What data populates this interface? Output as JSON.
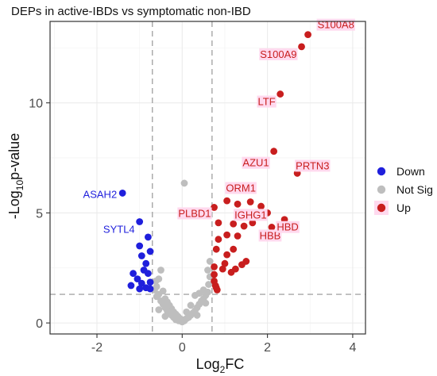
{
  "chart_data": {
    "type": "scatter",
    "title": "DEPs in active-IBDs vs symptomatic non-IBD",
    "xlabel": {
      "main": "Log",
      "sub": "2",
      "tail": "FC"
    },
    "ylabel": {
      "main": "-Log",
      "sub": "10",
      "tail": "p-value"
    },
    "xlim": [
      -3.1,
      4.3
    ],
    "ylim": [
      -0.5,
      13.7
    ],
    "x_ticks": [
      -2,
      0,
      2,
      4
    ],
    "y_ticks": [
      0,
      5,
      10
    ],
    "thresholds": {
      "log2fc": [
        -0.7,
        0.7
      ],
      "neglog10p": 1.3
    },
    "grid": true,
    "legend_position": "right",
    "colors": {
      "Down": "#1f1fdc",
      "Not Sig": "#bebebe",
      "Up": "#c81e1e",
      "label_bg": "#ffd9ee",
      "threshold_line": "#a6a6a6",
      "panel_border": "#333333",
      "grid": "#ebebeb"
    },
    "legend": [
      {
        "name": "Down",
        "color": "#1f1fdc"
      },
      {
        "name": "Not Sig",
        "color": "#bebebe"
      },
      {
        "name": "Up",
        "color": "#c81e1e"
      }
    ],
    "series": [
      {
        "name": "Down",
        "points": [
          [
            -1.4,
            5.9
          ],
          [
            -1.0,
            4.6
          ],
          [
            -0.8,
            3.9
          ],
          [
            -1.0,
            3.5
          ],
          [
            -0.95,
            3.05
          ],
          [
            -0.75,
            3.25
          ],
          [
            -0.85,
            2.7
          ],
          [
            -0.9,
            2.4
          ],
          [
            -1.15,
            2.25
          ],
          [
            -0.8,
            2.25
          ],
          [
            -1.05,
            2.0
          ],
          [
            -0.75,
            1.85
          ],
          [
            -0.95,
            1.8
          ],
          [
            -1.2,
            1.7
          ],
          [
            -0.85,
            1.6
          ],
          [
            -0.75,
            1.55
          ],
          [
            -1.0,
            1.55
          ]
        ]
      },
      {
        "name": "Not Sig",
        "points": [
          [
            -0.5,
            2.4
          ],
          [
            -0.55,
            2.0
          ],
          [
            -0.62,
            1.9
          ],
          [
            -0.65,
            1.5
          ],
          [
            -0.45,
            1.45
          ],
          [
            -0.55,
            1.3
          ],
          [
            -0.6,
            1.2
          ],
          [
            -0.4,
            1.1
          ],
          [
            -0.5,
            1.0
          ],
          [
            -0.35,
            0.95
          ],
          [
            -0.45,
            0.85
          ],
          [
            -0.3,
            0.8
          ],
          [
            -0.4,
            0.7
          ],
          [
            -0.25,
            0.65
          ],
          [
            -0.35,
            0.55
          ],
          [
            -0.2,
            0.5
          ],
          [
            -0.3,
            0.45
          ],
          [
            -0.15,
            0.4
          ],
          [
            -0.25,
            0.35
          ],
          [
            -0.1,
            0.3
          ],
          [
            -0.2,
            0.25
          ],
          [
            -0.05,
            0.2
          ],
          [
            -0.15,
            0.15
          ],
          [
            0.0,
            0.15
          ],
          [
            -0.08,
            0.1
          ],
          [
            0.05,
            0.1
          ],
          [
            0.0,
            0.05
          ],
          [
            0.1,
            0.2
          ],
          [
            0.15,
            0.25
          ],
          [
            0.2,
            0.35
          ],
          [
            0.25,
            0.45
          ],
          [
            0.3,
            0.55
          ],
          [
            0.35,
            0.7
          ],
          [
            0.4,
            0.85
          ],
          [
            0.45,
            1.0
          ],
          [
            0.5,
            1.1
          ],
          [
            0.55,
            1.25
          ],
          [
            0.6,
            1.4
          ],
          [
            0.5,
            1.5
          ],
          [
            0.62,
            1.75
          ],
          [
            0.65,
            2.1
          ],
          [
            0.6,
            2.4
          ],
          [
            0.65,
            2.8
          ],
          [
            0.3,
            1.25
          ],
          [
            0.4,
            1.35
          ],
          [
            0.2,
            0.8
          ],
          [
            0.1,
            0.5
          ],
          [
            -0.6,
            1.65
          ],
          [
            0.55,
            0.9
          ],
          [
            0.35,
            0.35
          ],
          [
            -0.4,
            0.3
          ],
          [
            -0.55,
            0.6
          ],
          [
            0.05,
            6.35
          ]
        ]
      },
      {
        "name": "Up",
        "points": [
          [
            2.95,
            13.1
          ],
          [
            2.8,
            12.55
          ],
          [
            2.3,
            10.4
          ],
          [
            2.15,
            7.8
          ],
          [
            2.7,
            6.8
          ],
          [
            0.75,
            5.25
          ],
          [
            1.05,
            5.55
          ],
          [
            1.3,
            5.4
          ],
          [
            1.6,
            5.5
          ],
          [
            1.85,
            5.3
          ],
          [
            2.0,
            5.0
          ],
          [
            2.4,
            4.7
          ],
          [
            2.1,
            4.35
          ],
          [
            1.65,
            4.55
          ],
          [
            1.45,
            4.4
          ],
          [
            1.2,
            4.5
          ],
          [
            0.85,
            4.55
          ],
          [
            1.05,
            4.0
          ],
          [
            1.3,
            3.95
          ],
          [
            0.85,
            3.8
          ],
          [
            1.2,
            3.35
          ],
          [
            0.8,
            3.35
          ],
          [
            1.05,
            3.1
          ],
          [
            1.5,
            2.8
          ],
          [
            1.4,
            2.65
          ],
          [
            1.25,
            2.45
          ],
          [
            0.95,
            2.45
          ],
          [
            1.0,
            2.7
          ],
          [
            0.75,
            2.55
          ],
          [
            0.75,
            2.2
          ],
          [
            0.75,
            1.9
          ],
          [
            0.78,
            1.7
          ],
          [
            0.8,
            1.6
          ],
          [
            0.82,
            1.5
          ],
          [
            1.15,
            2.3
          ]
        ]
      }
    ],
    "annotations": [
      {
        "label": "S100A8",
        "x": 2.95,
        "y": 13.1,
        "group": "Up"
      },
      {
        "label": "S100A9",
        "x": 2.8,
        "y": 12.55,
        "group": "Up"
      },
      {
        "label": "LTF",
        "x": 2.3,
        "y": 10.4,
        "group": "Up"
      },
      {
        "label": "AZU1",
        "x": 2.15,
        "y": 7.8,
        "group": "Up"
      },
      {
        "label": "PRTN3",
        "x": 2.7,
        "y": 6.8,
        "group": "Up"
      },
      {
        "label": "ORM1",
        "x": 1.6,
        "y": 5.5,
        "group": "Up"
      },
      {
        "label": "PLBD1",
        "x": 0.75,
        "y": 5.25,
        "group": "Up"
      },
      {
        "label": "IGHG1",
        "x": 2.0,
        "y": 5.0,
        "group": "Up"
      },
      {
        "label": "HBB",
        "x": 2.1,
        "y": 4.35,
        "group": "Up"
      },
      {
        "label": "HBD",
        "x": 2.4,
        "y": 4.7,
        "group": "Up"
      },
      {
        "label": "ASAH2",
        "x": -1.4,
        "y": 5.9,
        "group": "Down"
      },
      {
        "label": "SYTL4",
        "x": -1.0,
        "y": 4.6,
        "group": "Down"
      }
    ]
  }
}
